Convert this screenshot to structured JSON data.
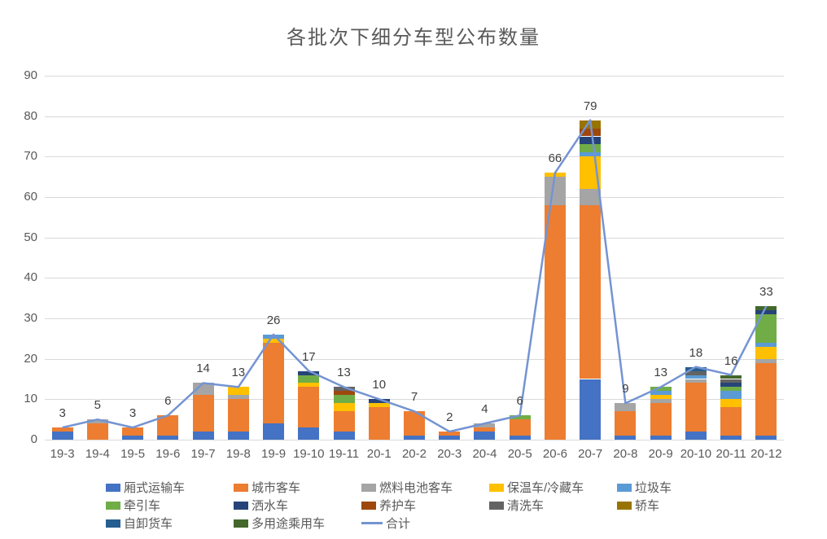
{
  "title": "各批次下细分车型公布数量",
  "colors": {
    "background": "#FFFFFF",
    "title_text": "#595959",
    "axis_text": "#595959",
    "gridline": "#D9D9D9",
    "data_label_text": "#404040",
    "total_line": "#7494D2"
  },
  "chart_data": {
    "type": "bar",
    "stacked": true,
    "title": "各批次下细分车型公布数量",
    "xlabel": "",
    "ylabel": "",
    "ylim": [
      0,
      90
    ],
    "yticks": [
      0,
      10,
      20,
      30,
      40,
      50,
      60,
      70,
      80,
      90
    ],
    "grid": true,
    "legend_position": "bottom",
    "categories": [
      "19-3",
      "19-4",
      "19-5",
      "19-6",
      "19-7",
      "19-8",
      "19-9",
      "19-10",
      "19-11",
      "20-1",
      "20-2",
      "20-3",
      "20-4",
      "20-5",
      "20-6",
      "20-7",
      "20-8",
      "20-9",
      "20-10",
      "20-11",
      "20-12"
    ],
    "series": [
      {
        "name": "厢式运输车",
        "color": "#4472C4",
        "values": [
          2,
          0,
          1,
          1,
          2,
          2,
          4,
          3,
          2,
          0,
          1,
          1,
          2,
          1,
          0,
          15,
          1,
          1,
          2,
          1,
          1
        ]
      },
      {
        "name": "城市客车",
        "color": "#ED7D31",
        "values": [
          1,
          4,
          2,
          5,
          9,
          8,
          20,
          10,
          5,
          8,
          6,
          1,
          1,
          4,
          58,
          43,
          6,
          8,
          12,
          7,
          18
        ]
      },
      {
        "name": "燃料电池客车",
        "color": "#A5A5A5",
        "values": [
          0,
          1,
          0,
          0,
          3,
          1,
          0,
          0,
          0,
          0,
          0,
          0,
          1,
          0,
          7,
          4,
          2,
          1,
          1,
          0,
          1
        ]
      },
      {
        "name": "保温车/冷藏车",
        "color": "#FFC000",
        "values": [
          0,
          0,
          0,
          0,
          0,
          2,
          1,
          1,
          2,
          1,
          0,
          0,
          0,
          0,
          1,
          8,
          0,
          1,
          0,
          2,
          3
        ]
      },
      {
        "name": "垃圾车",
        "color": "#5B9BD5",
        "values": [
          0,
          0,
          0,
          0,
          0,
          0,
          1,
          0,
          0,
          0,
          0,
          0,
          0,
          0,
          0,
          1,
          0,
          1,
          1,
          2,
          1
        ]
      },
      {
        "name": "牵引车",
        "color": "#70AD47",
        "values": [
          0,
          0,
          0,
          0,
          0,
          0,
          0,
          2,
          2,
          0,
          0,
          0,
          0,
          1,
          0,
          2,
          0,
          1,
          0,
          1,
          7
        ]
      },
      {
        "name": "洒水车",
        "color": "#264478",
        "values": [
          0,
          0,
          0,
          0,
          0,
          0,
          0,
          1,
          0,
          1,
          0,
          0,
          0,
          0,
          0,
          2,
          0,
          0,
          0,
          1,
          1
        ]
      },
      {
        "name": "养护车",
        "color": "#9E480E",
        "values": [
          0,
          0,
          0,
          0,
          0,
          0,
          0,
          0,
          1,
          0,
          0,
          0,
          0,
          0,
          0,
          2,
          0,
          0,
          0,
          0,
          0
        ]
      },
      {
        "name": "清洗车",
        "color": "#636363",
        "values": [
          0,
          0,
          0,
          0,
          0,
          0,
          0,
          0,
          1,
          0,
          0,
          0,
          0,
          0,
          0,
          0,
          0,
          0,
          1,
          1,
          0
        ]
      },
      {
        "name": "轿车",
        "color": "#997300",
        "values": [
          0,
          0,
          0,
          0,
          0,
          0,
          0,
          0,
          0,
          0,
          0,
          0,
          0,
          0,
          0,
          2,
          0,
          0,
          0,
          0,
          0
        ]
      },
      {
        "name": "自卸货车",
        "color": "#255E91",
        "values": [
          0,
          0,
          0,
          0,
          0,
          0,
          0,
          0,
          0,
          0,
          0,
          0,
          0,
          0,
          0,
          0,
          0,
          0,
          1,
          0,
          0
        ]
      },
      {
        "name": "多用途乘用车",
        "color": "#43682B",
        "values": [
          0,
          0,
          0,
          0,
          0,
          0,
          0,
          0,
          0,
          0,
          0,
          0,
          0,
          0,
          0,
          0,
          0,
          0,
          0,
          1,
          1
        ]
      }
    ],
    "line_series": {
      "name": "合计",
      "color": "#7494D2",
      "values": [
        3,
        5,
        3,
        6,
        14,
        13,
        26,
        17,
        13,
        10,
        7,
        2,
        4,
        6,
        66,
        79,
        9,
        13,
        18,
        16,
        33
      ]
    },
    "data_labels": [
      3,
      5,
      3,
      6,
      14,
      13,
      26,
      17,
      13,
      10,
      7,
      2,
      4,
      6,
      66,
      79,
      9,
      13,
      18,
      16,
      33
    ]
  }
}
